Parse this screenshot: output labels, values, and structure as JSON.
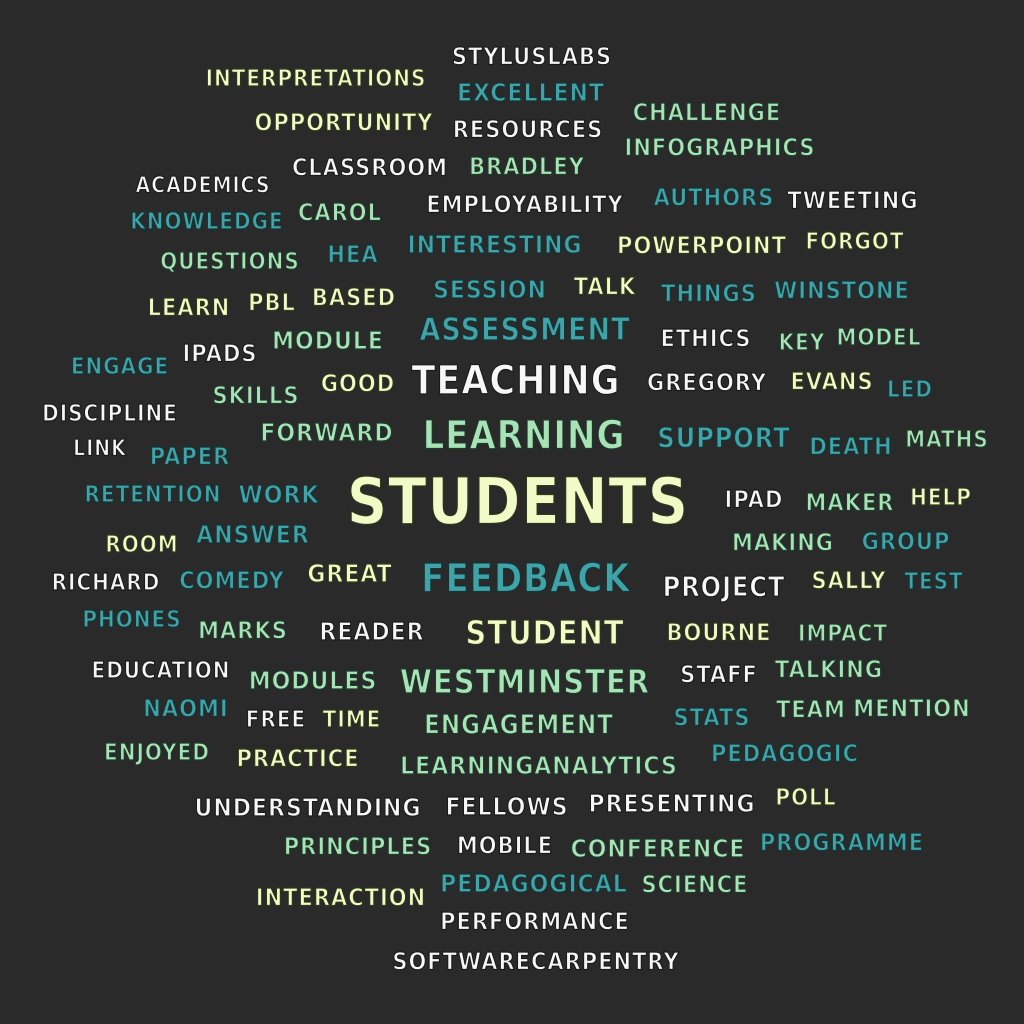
{
  "words": [
    {
      "text": "STUDENTS",
      "color": "yellow"
    },
    {
      "text": "TEACHING",
      "color": "white"
    },
    {
      "text": "LEARNING",
      "color": "mint"
    },
    {
      "text": "FEEDBACK",
      "color": "teal"
    },
    {
      "text": "STUDENT",
      "color": "yellow"
    },
    {
      "text": "WESTMINSTER",
      "color": "mint"
    },
    {
      "text": "ASSESSMENT",
      "color": "teal"
    },
    {
      "text": "STYLUSLABS",
      "color": "white"
    },
    {
      "text": "INTERPRETATIONS",
      "color": "yellow"
    },
    {
      "text": "EXCELLENT",
      "color": "teal"
    },
    {
      "text": "OPPORTUNITY",
      "color": "yellow"
    },
    {
      "text": "RESOURCES",
      "color": "white"
    },
    {
      "text": "CHALLENGE",
      "color": "mint"
    },
    {
      "text": "INFOGRAPHICS",
      "color": "mint"
    },
    {
      "text": "CLASSROOM",
      "color": "white"
    },
    {
      "text": "BRADLEY",
      "color": "mint"
    },
    {
      "text": "ACADEMICS",
      "color": "white"
    },
    {
      "text": "EMPLOYABILITY",
      "color": "white"
    },
    {
      "text": "AUTHORS",
      "color": "teal"
    },
    {
      "text": "TWEETING",
      "color": "white"
    },
    {
      "text": "KNOWLEDGE",
      "color": "teal"
    },
    {
      "text": "CAROL",
      "color": "mint"
    },
    {
      "text": "QUESTIONS",
      "color": "mint"
    },
    {
      "text": "HEA",
      "color": "teal"
    },
    {
      "text": "INTERESTING",
      "color": "teal"
    },
    {
      "text": "POWERPOINT",
      "color": "yellow"
    },
    {
      "text": "FORGOT",
      "color": "yellow"
    },
    {
      "text": "LEARN",
      "color": "yellow"
    },
    {
      "text": "PBL",
      "color": "yellow"
    },
    {
      "text": "BASED",
      "color": "yellow"
    },
    {
      "text": "SESSION",
      "color": "teal"
    },
    {
      "text": "TALK",
      "color": "yellow"
    },
    {
      "text": "THINGS",
      "color": "teal"
    },
    {
      "text": "WINSTONE",
      "color": "teal"
    },
    {
      "text": "MODULE",
      "color": "mint"
    },
    {
      "text": "ETHICS",
      "color": "white"
    },
    {
      "text": "KEY",
      "color": "mint"
    },
    {
      "text": "MODEL",
      "color": "mint"
    },
    {
      "text": "ENGAGE",
      "color": "teal"
    },
    {
      "text": "IPADS",
      "color": "white"
    },
    {
      "text": "GOOD",
      "color": "yellow"
    },
    {
      "text": "GREGORY",
      "color": "white"
    },
    {
      "text": "EVANS",
      "color": "yellow"
    },
    {
      "text": "SKILLS",
      "color": "mint"
    },
    {
      "text": "LED",
      "color": "teal"
    },
    {
      "text": "DISCIPLINE",
      "color": "white"
    },
    {
      "text": "FORWARD",
      "color": "mint"
    },
    {
      "text": "SUPPORT",
      "color": "teal"
    },
    {
      "text": "DEATH",
      "color": "teal"
    },
    {
      "text": "MATHS",
      "color": "mint"
    },
    {
      "text": "LINK",
      "color": "white"
    },
    {
      "text": "PAPER",
      "color": "teal"
    },
    {
      "text": "RETENTION",
      "color": "teal"
    },
    {
      "text": "WORK",
      "color": "teal"
    },
    {
      "text": "IPAD",
      "color": "white"
    },
    {
      "text": "MAKER",
      "color": "mint"
    },
    {
      "text": "HELP",
      "color": "yellow"
    },
    {
      "text": "ANSWER",
      "color": "teal"
    },
    {
      "text": "MAKING",
      "color": "mint"
    },
    {
      "text": "GROUP",
      "color": "teal"
    },
    {
      "text": "ROOM",
      "color": "yellow"
    },
    {
      "text": "RICHARD",
      "color": "white"
    },
    {
      "text": "COMEDY",
      "color": "teal"
    },
    {
      "text": "GREAT",
      "color": "yellow"
    },
    {
      "text": "PROJECT",
      "color": "white"
    },
    {
      "text": "SALLY",
      "color": "yellow"
    },
    {
      "text": "TEST",
      "color": "teal"
    },
    {
      "text": "PHONES",
      "color": "teal"
    },
    {
      "text": "MARKS",
      "color": "mint"
    },
    {
      "text": "READER",
      "color": "white"
    },
    {
      "text": "BOURNE",
      "color": "yellow"
    },
    {
      "text": "IMPACT",
      "color": "mint"
    },
    {
      "text": "EDUCATION",
      "color": "white"
    },
    {
      "text": "MODULES",
      "color": "mint"
    },
    {
      "text": "STAFF",
      "color": "white"
    },
    {
      "text": "TALKING",
      "color": "mint"
    },
    {
      "text": "NAOMI",
      "color": "teal"
    },
    {
      "text": "FREE",
      "color": "white"
    },
    {
      "text": "TIME",
      "color": "yellow"
    },
    {
      "text": "ENGAGEMENT",
      "color": "mint"
    },
    {
      "text": "STATS",
      "color": "teal"
    },
    {
      "text": "TEAM",
      "color": "mint"
    },
    {
      "text": "MENTION",
      "color": "mint"
    },
    {
      "text": "ENJOYED",
      "color": "mint"
    },
    {
      "text": "PRACTICE",
      "color": "yellow"
    },
    {
      "text": "LEARNINGANALYTICS",
      "color": "mint"
    },
    {
      "text": "PEDAGOGIC",
      "color": "teal"
    },
    {
      "text": "UNDERSTANDING",
      "color": "white"
    },
    {
      "text": "FELLOWS",
      "color": "white"
    },
    {
      "text": "PRESENTING",
      "color": "white"
    },
    {
      "text": "POLL",
      "color": "yellow"
    },
    {
      "text": "PRINCIPLES",
      "color": "mint"
    },
    {
      "text": "MOBILE",
      "color": "white"
    },
    {
      "text": "CONFERENCE",
      "color": "mint"
    },
    {
      "text": "PROGRAMME",
      "color": "teal"
    },
    {
      "text": "INTERACTION",
      "color": "yellow"
    },
    {
      "text": "PEDAGOGICAL",
      "color": "teal"
    },
    {
      "text": "SCIENCE",
      "color": "mint"
    },
    {
      "text": "PERFORMANCE",
      "color": "white"
    },
    {
      "text": "SOFTWARECARPENTRY",
      "color": "white"
    }
  ]
}
